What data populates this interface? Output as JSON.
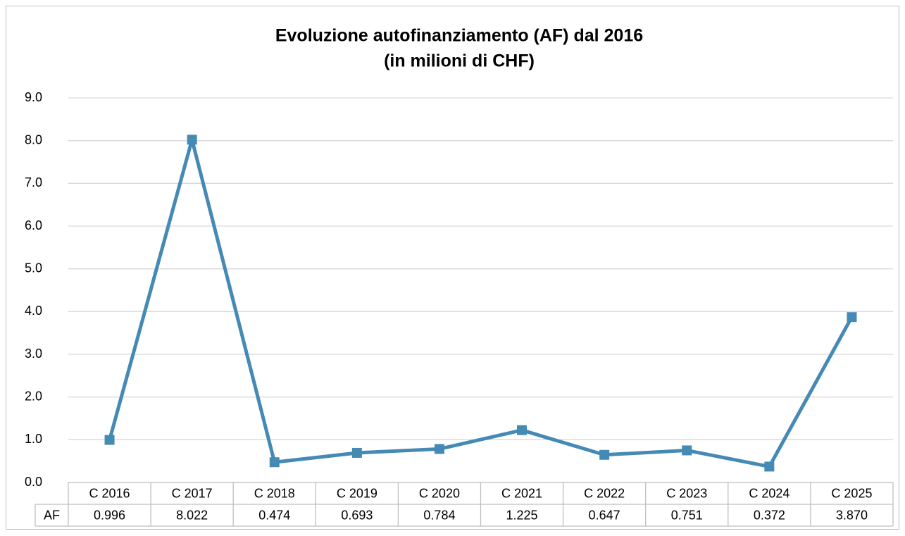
{
  "chart_data": {
    "type": "line",
    "title": "Evoluzione autofinanziamento (AF) dal 2016",
    "subtitle": "(in milioni di CHF)",
    "categories": [
      "C 2016",
      "C 2017",
      "C 2018",
      "C 2019",
      "C 2020",
      "C 2021",
      "C 2022",
      "C 2023",
      "C 2024",
      "C 2025"
    ],
    "series": [
      {
        "name": "AF",
        "color": "#4589b5",
        "values": [
          0.996,
          8.022,
          0.474,
          0.693,
          0.784,
          1.225,
          0.647,
          0.751,
          0.372,
          3.87
        ],
        "value_labels": [
          "0.996",
          "8.022",
          "0.474",
          "0.693",
          "0.784",
          "1.225",
          "0.647",
          "0.751",
          "0.372",
          "3.870"
        ]
      }
    ],
    "ylim": [
      0,
      9
    ],
    "yticks": [
      {
        "value": 0,
        "label": "0.0"
      },
      {
        "value": 1,
        "label": "1.0"
      },
      {
        "value": 2,
        "label": "2.0"
      },
      {
        "value": 3,
        "label": "3.0"
      },
      {
        "value": 4,
        "label": "4.0"
      },
      {
        "value": 5,
        "label": "5.0"
      },
      {
        "value": 6,
        "label": "6.0"
      },
      {
        "value": 7,
        "label": "7.0"
      },
      {
        "value": 8,
        "label": "8.0"
      },
      {
        "value": 9,
        "label": "9.0"
      }
    ],
    "grid": true
  }
}
